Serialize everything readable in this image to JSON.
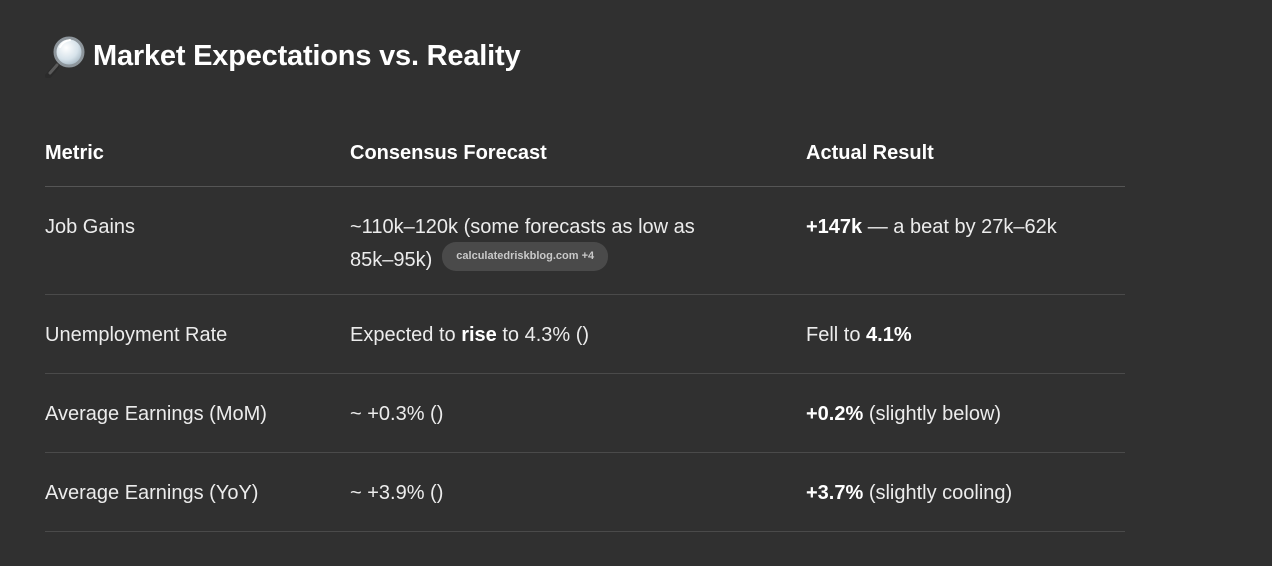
{
  "heading": {
    "icon": "magnifying-glass-icon",
    "title": "Market Expectations vs. Reality"
  },
  "table": {
    "headers": [
      "Metric",
      "Consensus Forecast",
      "Actual Result"
    ],
    "rows": [
      {
        "metric": "Job Gains",
        "forecast": "~110k–120k (some forecasts as low as 85k–95k)",
        "forecast_line1": "~110k–120k (some forecasts as low as",
        "forecast_line2": "85k–95k)",
        "source_pill": "calculatedriskblog.com +4",
        "actual_bold": "+147k",
        "actual_rest": " — a beat by 27k–62k"
      },
      {
        "metric": "Unemployment Rate",
        "forecast_pre": "Expected to ",
        "forecast_bold": "rise",
        "forecast_post": " to 4.3% ()",
        "actual_pre": "Fell to ",
        "actual_bold": "4.1%"
      },
      {
        "metric": "Average Earnings (MoM)",
        "forecast": "~ +0.3% ()",
        "actual_bold": "+0.2%",
        "actual_rest": " (slightly below)"
      },
      {
        "metric": "Average Earnings (YoY)",
        "forecast": "~ +3.9% ()",
        "actual_bold": "+3.7%",
        "actual_rest": " (slightly cooling)"
      }
    ]
  }
}
